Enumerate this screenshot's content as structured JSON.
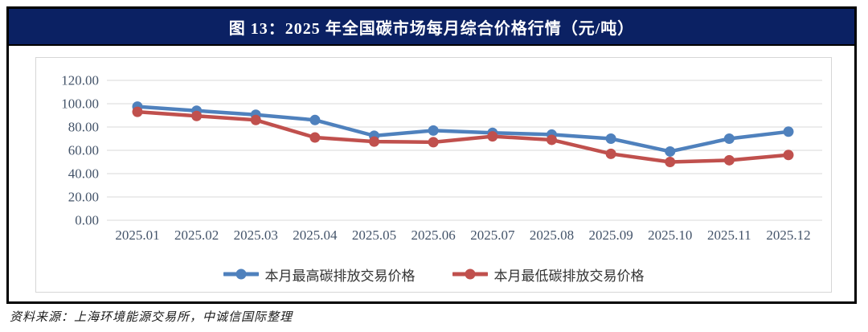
{
  "figure": {
    "title": "图 13：2025 年全国碳市场每月综合价格行情（元/吨）",
    "source_note": "资料来源：上海环境能源交易所，中诚信国际整理"
  },
  "colors": {
    "header_bg": "#0B2163",
    "header_text": "#FFFFFF",
    "outer_border": "#000000",
    "chart_border": "#D6D6D6",
    "gridline": "#D9D9D9",
    "axis_text": "#44546A",
    "series_high_blue": "#4F81BD",
    "series_low_red": "#C0504D"
  },
  "chart_data": {
    "type": "line",
    "title": "图 13：2025 年全国碳市场每月综合价格行情（元/吨）",
    "unit": "元/吨",
    "categories": [
      "2025.01",
      "2025.02",
      "2025.03",
      "2025.04",
      "2025.05",
      "2025.06",
      "2025.07",
      "2025.08",
      "2025.09",
      "2025.10",
      "2025.11",
      "2025.12"
    ],
    "series": [
      {
        "name": "本月最高碳排放交易价格",
        "color": "#4F81BD",
        "values": [
          97.5,
          94,
          90.5,
          86,
          72.5,
          77,
          75,
          73.5,
          70,
          59,
          70,
          76
        ]
      },
      {
        "name": "本月最低碳排放交易价格",
        "color": "#C0504D",
        "values": [
          93,
          89.5,
          86,
          71,
          67.5,
          67,
          72,
          69,
          57,
          50,
          51.5,
          56
        ]
      }
    ],
    "ylim": [
      0,
      120
    ],
    "ytick_step": 20,
    "ytick_labels": [
      "0.00",
      "20.00",
      "40.00",
      "60.00",
      "80.00",
      "100.00",
      "120.00"
    ],
    "xlabel": "",
    "ylabel": "",
    "grid": true,
    "legend_position": "bottom"
  }
}
